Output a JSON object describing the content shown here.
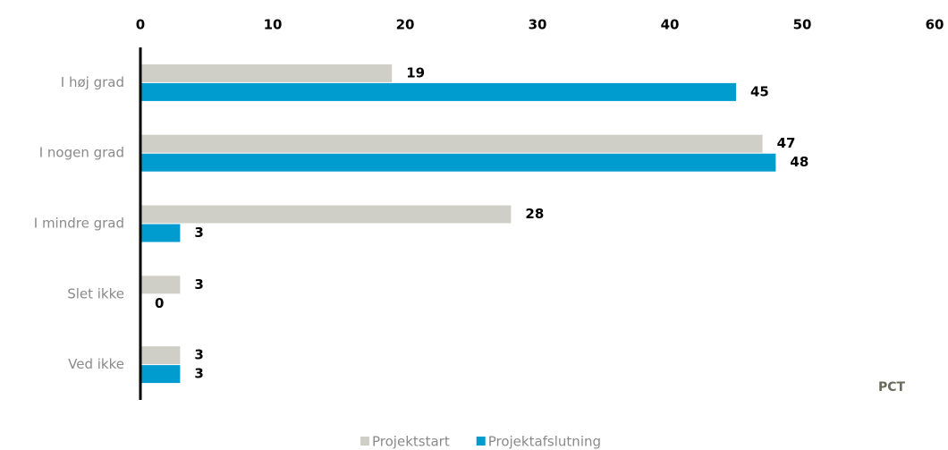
{
  "chart_data": {
    "type": "bar",
    "orientation": "horizontal",
    "xlabel": "PCT",
    "categories": [
      "I høj grad",
      "I nogen grad",
      "I mindre grad",
      "Slet ikke",
      "Ved ikke"
    ],
    "series": [
      {
        "name": "Projektstart",
        "color": "#d0cfc7",
        "values": [
          19,
          47,
          28,
          3,
          3
        ]
      },
      {
        "name": "Projektafslutning",
        "color": "#009ccf",
        "values": [
          45,
          48,
          3,
          0,
          3
        ]
      }
    ],
    "xlim": [
      0,
      60
    ],
    "xticks": [
      0,
      10,
      20,
      30,
      40,
      50,
      60
    ],
    "grid": false,
    "legend": "bottom"
  }
}
